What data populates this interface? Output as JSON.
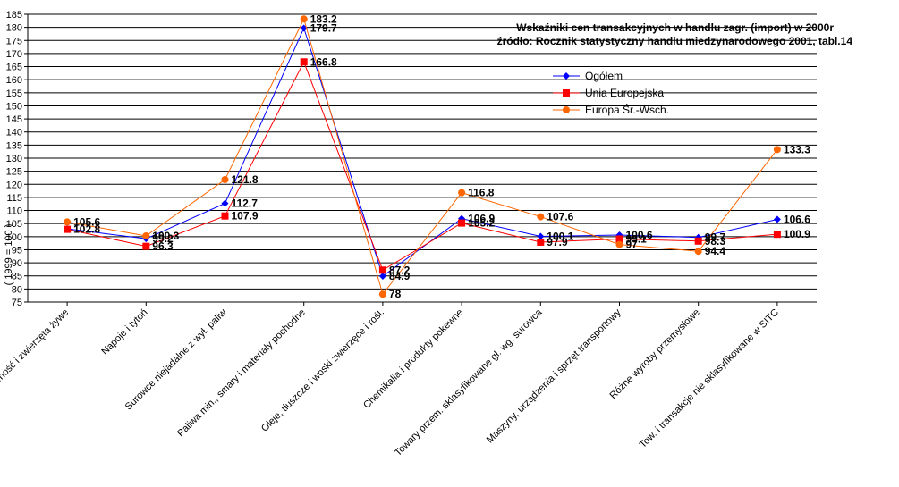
{
  "chart_data": {
    "type": "line",
    "title": "Wskaźniki cen transakcyjnych w handlu zagr. (import)  w 2000r",
    "subtitle": "źródło: Rocznik statystyczny handlu miedzynarodowego 2001, tabl.14",
    "ylabel": "( 1999 = 100 )",
    "ylim": [
      75,
      185
    ],
    "ytick_step": 5,
    "grid": true,
    "legend_position": "top-right",
    "categories": [
      "Żywność i zwierzęta żywe",
      "Napoje i tytoń",
      "Surowce niejadalne z wył. paliw",
      "Paliwa min., smary i materiały pochodne",
      "Oleje, tłuszcze i woski zwierzęce i rośl.",
      "Chemikalia i produkty pokewne",
      "Towary przem. sklasyfikowane gł. wg. surowca",
      "Maszyny, urządzenia i sprzęt transportowy",
      "Różne wyroby przemysłowe",
      "Tow. i transakcje nie sklasyfikowane w SITC"
    ],
    "series": [
      {
        "name": "Ogółem",
        "color": "#0000ff",
        "marker": "diamond",
        "values": [
          103.0,
          99.2,
          112.7,
          179.7,
          84.9,
          106.9,
          100.1,
          100.6,
          99.7,
          106.6
        ],
        "labels": [
          "",
          "99.2",
          "112.7",
          "179.7",
          "84.9",
          "106.9",
          "100.1",
          "100.6",
          "99.7",
          "106.6"
        ]
      },
      {
        "name": "Unia Europejska",
        "color": "#ff0000",
        "marker": "square",
        "values": [
          102.8,
          96.3,
          107.9,
          166.8,
          87.2,
          105.2,
          97.9,
          99.1,
          98.3,
          100.9
        ],
        "labels": [
          "102.8",
          "96.3",
          "107.9",
          "166.8",
          "87.2",
          "105.2",
          "97.9",
          "99.1",
          "98.3",
          "100.9"
        ]
      },
      {
        "name": "Europa Śr.-Wsch.",
        "color": "#ff6600",
        "marker": "circle",
        "values": [
          105.6,
          100.3,
          121.8,
          183.2,
          78.0,
          116.8,
          107.6,
          97.0,
          94.4,
          133.3
        ],
        "labels": [
          "105.6",
          "100.3",
          "121.8",
          "183.2",
          "78",
          "116.8",
          "107.6",
          "97",
          "94.4",
          "133.3"
        ]
      }
    ]
  }
}
